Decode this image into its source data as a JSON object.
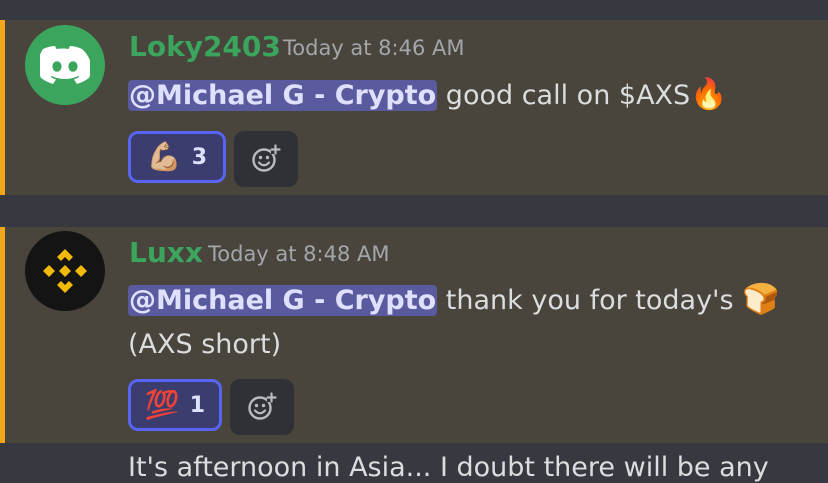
{
  "messages": [
    {
      "username": "Loky2403",
      "timestamp": "Today at 8:46 AM",
      "mention": "@Michael G - Crypto",
      "text": " good call on $AXS",
      "text_emoji": "🔥",
      "reaction": {
        "emoji": "💪🏼",
        "count": "3"
      }
    },
    {
      "username": "Luxx",
      "timestamp": "Today at 8:48 AM",
      "mention": "@Michael G - Crypto",
      "text": " thank you for today's ",
      "text_emoji": "🍞",
      "line2": "(AXS short)",
      "reaction": {
        "emoji": "💯",
        "count": "1"
      }
    }
  ],
  "next_message_partial": "It's afternoon in Asia... I doubt there will be any",
  "icons": {
    "avatar1": "discord-logo-icon",
    "avatar2": "binance-logo-icon",
    "add_reaction": "add-reaction-icon"
  },
  "colors": {
    "username": "#3ba55d",
    "mention_bg": "#5a5b9e",
    "highlight_bar": "#f0a81a",
    "reaction_border": "#5865f2"
  }
}
